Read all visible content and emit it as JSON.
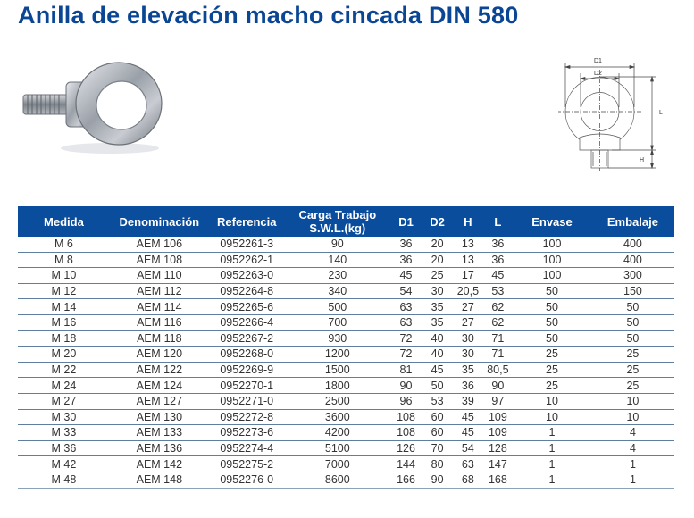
{
  "title": "Anilla de elevación macho cincada DIN 580",
  "images": {
    "photo": "zinc-plated-eye-bolt-photo",
    "diagram": {
      "name": "eye-bolt-dimension-diagram",
      "labels": {
        "d1": "D1",
        "d2": "D2",
        "l": "L",
        "h": "H"
      }
    }
  },
  "table": {
    "headers": {
      "medida": "Medida",
      "denominacion": "Denominación",
      "referencia": "Referencia",
      "carga_line1": "Carga Trabajo",
      "carga_line2": "S.W.L.(kg)",
      "d1": "D1",
      "d2": "D2",
      "h": "H",
      "l": "L",
      "envase": "Envase",
      "embalaje": "Embalaje"
    },
    "rows": [
      [
        "M 6",
        "AEM 106",
        "0952261-3",
        "90",
        "36",
        "20",
        "13",
        "36",
        "100",
        "400"
      ],
      [
        "M 8",
        "AEM 108",
        "0952262-1",
        "140",
        "36",
        "20",
        "13",
        "36",
        "100",
        "400"
      ],
      [
        "M 10",
        "AEM 110",
        "0952263-0",
        "230",
        "45",
        "25",
        "17",
        "45",
        "100",
        "300"
      ],
      [
        "M 12",
        "AEM 112",
        "0952264-8",
        "340",
        "54",
        "30",
        "20,5",
        "53",
        "50",
        "150"
      ],
      [
        "M 14",
        "AEM 114",
        "0952265-6",
        "500",
        "63",
        "35",
        "27",
        "62",
        "50",
        "50"
      ],
      [
        "M 16",
        "AEM 116",
        "0952266-4",
        "700",
        "63",
        "35",
        "27",
        "62",
        "50",
        "50"
      ],
      [
        "M 18",
        "AEM 118",
        "0952267-2",
        "930",
        "72",
        "40",
        "30",
        "71",
        "50",
        "50"
      ],
      [
        "M 20",
        "AEM 120",
        "0952268-0",
        "1200",
        "72",
        "40",
        "30",
        "71",
        "25",
        "25"
      ],
      [
        "M 22",
        "AEM 122",
        "0952269-9",
        "1500",
        "81",
        "45",
        "35",
        "80,5",
        "25",
        "25"
      ],
      [
        "M 24",
        "AEM 124",
        "0952270-1",
        "1800",
        "90",
        "50",
        "36",
        "90",
        "25",
        "25"
      ],
      [
        "M 27",
        "AEM 127",
        "0952271-0",
        "2500",
        "96",
        "53",
        "39",
        "97",
        "10",
        "10"
      ],
      [
        "M 30",
        "AEM 130",
        "0952272-8",
        "3600",
        "108",
        "60",
        "45",
        "109",
        "10",
        "10"
      ],
      [
        "M 33",
        "AEM 133",
        "0952273-6",
        "4200",
        "108",
        "60",
        "45",
        "109",
        "1",
        "4"
      ],
      [
        "M 36",
        "AEM 136",
        "0952274-4",
        "5100",
        "126",
        "70",
        "54",
        "128",
        "1",
        "4"
      ],
      [
        "M 42",
        "AEM 142",
        "0952275-2",
        "7000",
        "144",
        "80",
        "63",
        "147",
        "1",
        "1"
      ],
      [
        "M 48",
        "AEM 148",
        "0952276-0",
        "8600",
        "166",
        "90",
        "68",
        "168",
        "1",
        "1"
      ]
    ]
  },
  "colors": {
    "title": "#0a4694",
    "header_bg": "#0a4d9c",
    "header_text": "#ffffff",
    "row_divider": "#5f7f9f"
  }
}
